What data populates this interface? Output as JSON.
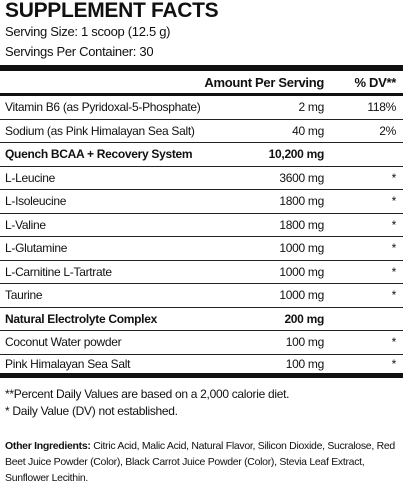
{
  "header": {
    "title": "SUPPLEMENT FACTS",
    "serving_size": "Serving Size: 1 scoop (12.5 g)",
    "servings_per_container": "Servings Per Container: 30"
  },
  "table": {
    "columns": [
      "Amount Per Serving",
      "% DV**"
    ],
    "rows": [
      {
        "name": "Vitamin B6 (as Pyridoxal-5-Phosphate)",
        "amount": "2 mg",
        "dv": "118%"
      },
      {
        "name": "Sodium (as Pink Himalayan Sea Salt)",
        "amount": "40 mg",
        "dv": "2%"
      }
    ],
    "blends": [
      {
        "name": "Quench BCAA + Recovery System",
        "amount": "10,200 mg",
        "rows": [
          {
            "name": "L-Leucine",
            "amount": "3600 mg",
            "dv": "*"
          },
          {
            "name": "L-Isoleucine",
            "amount": "1800 mg",
            "dv": "*"
          },
          {
            "name": "L-Valine",
            "amount": "1800 mg",
            "dv": "*"
          },
          {
            "name": "L-Glutamine",
            "amount": "1000 mg",
            "dv": "*"
          },
          {
            "name": "L-Carnitine L-Tartrate",
            "amount": "1000 mg",
            "dv": "*"
          },
          {
            "name": "Taurine",
            "amount": "1000 mg",
            "dv": "*"
          }
        ]
      },
      {
        "name": "Natural Electrolyte Complex",
        "amount": "200 mg",
        "rows": [
          {
            "name": "Coconut Water powder",
            "amount": "100 mg",
            "dv": "*"
          },
          {
            "name": "Pink Himalayan Sea Salt",
            "amount": "100 mg",
            "dv": "*"
          }
        ]
      }
    ]
  },
  "footnotes": [
    "**Percent Daily Values are based on a 2,000 calorie diet.",
    "* Daily Value (DV) not established."
  ],
  "other_ingredients": {
    "label": "Other Ingredients:",
    "text": "Citric Acid, Malic Acid, Natural Flavor, Silicon Dioxide, Sucralose, Red Beet Juice Powder (Color), Black Carrot Juice Powder (Color), Stevia Leaf Extract, Sunflower Lecithin."
  }
}
